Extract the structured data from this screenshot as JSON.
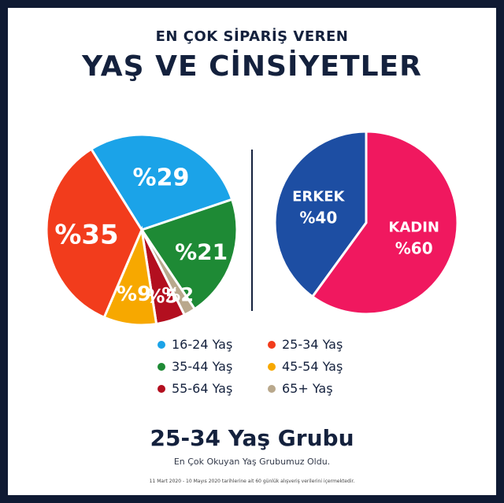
{
  "header": {
    "kicker": "EN ÇOK SİPARİŞ VEREN",
    "title": "YAŞ VE CİNSİYETLER"
  },
  "chart_data": [
    {
      "type": "pie",
      "categories": [
        "16-24 Yaş",
        "35-44 Yaş",
        "65+ Yaş",
        "55-64 Yaş",
        "45-54 Yaş",
        "25-34 Yaş"
      ],
      "values": [
        29,
        21,
        2,
        5,
        9,
        35
      ],
      "labels": [
        "%29",
        "%21",
        "%2",
        "%5",
        "%9",
        "%35"
      ],
      "colors": [
        "#1ba3e8",
        "#1e8a35",
        "#b9a88c",
        "#b30f1f",
        "#f7a800",
        "#f23c1c"
      ],
      "legend": "bottom"
    },
    {
      "type": "pie",
      "categories": [
        "ERKEK",
        "KADIN"
      ],
      "values": [
        40,
        60
      ],
      "labels": [
        "%40",
        "%60"
      ],
      "colors": [
        "#1d4ea3",
        "#f0185f"
      ]
    }
  ],
  "legend": [
    {
      "label": "16-24 Yaş",
      "color": "#1ba3e8"
    },
    {
      "label": "25-34 Yaş",
      "color": "#f23c1c"
    },
    {
      "label": "35-44 Yaş",
      "color": "#1e8a35"
    },
    {
      "label": "45-54 Yaş",
      "color": "#f7a800"
    },
    {
      "label": "55-64 Yaş",
      "color": "#b30f1f"
    },
    {
      "label": "65+ Yaş",
      "color": "#b9a88c"
    }
  ],
  "footer": {
    "title": "25-34 Yaş Grubu",
    "subtitle": "En Çok Okuyan Yaş Grubumuz Oldu.",
    "note": "11 Mart 2020 - 10 Mayıs 2020 tarihlerine ait 60 günlük alışveriş verilerini içermektedir."
  }
}
